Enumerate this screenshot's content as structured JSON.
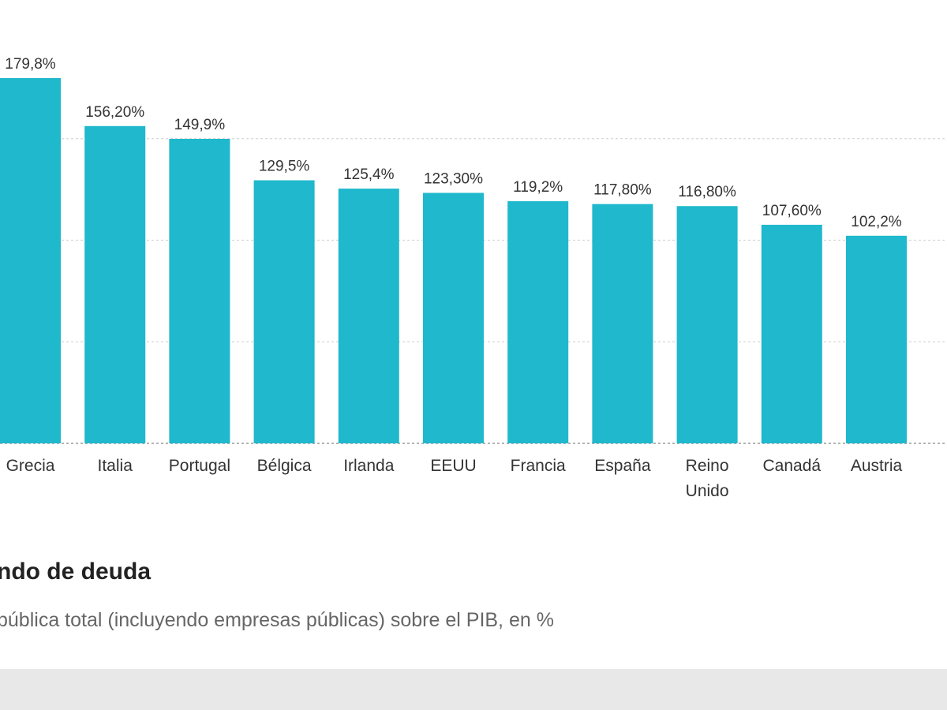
{
  "chart_data": {
    "type": "bar",
    "title": "ndo de deuda",
    "subtitle": "pública total (incluyendo empresas públicas) sobre el PIB, en %",
    "categories": [
      "Grecia",
      "Italia",
      "Portugal",
      "Bélgica",
      "Irlanda",
      "EEUU",
      "Francia",
      "España",
      "Reino Unido",
      "Canadá",
      "Austria"
    ],
    "category_lines": [
      [
        "Grecia"
      ],
      [
        "Italia"
      ],
      [
        "Portugal"
      ],
      [
        "Bélgica"
      ],
      [
        "Irlanda"
      ],
      [
        "EEUU"
      ],
      [
        "Francia"
      ],
      [
        "España"
      ],
      [
        "Reino",
        "Unido"
      ],
      [
        "Canadá"
      ],
      [
        "Austria"
      ]
    ],
    "values": [
      179.8,
      156.2,
      149.9,
      129.5,
      125.4,
      123.3,
      119.2,
      117.8,
      116.8,
      107.6,
      102.2
    ],
    "value_labels": [
      "179,8%",
      "156,20%",
      "149,9%",
      "129,5%",
      "125,4%",
      "123,30%",
      "119,2%",
      "117,80%",
      "116,80%",
      "107,60%",
      "102,2%"
    ],
    "ylim": [
      0,
      200
    ],
    "grid": true,
    "gridline_values": [
      50,
      100,
      150
    ],
    "colors": {
      "bar": "#1fb8cc",
      "grid": "#d6d6d6",
      "baseline": "#9a9a9a"
    }
  }
}
